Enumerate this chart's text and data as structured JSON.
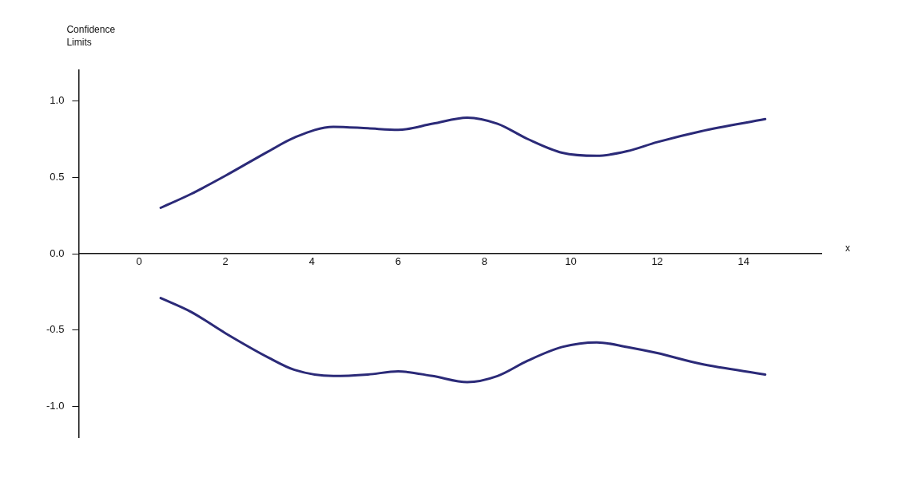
{
  "chart_data": {
    "type": "line",
    "xlabel": "x",
    "ylabel": "Confidence Limits",
    "xlim": [
      -1.4,
      15.8
    ],
    "ylim": [
      -1.2,
      1.2
    ],
    "xticks": [
      0,
      2,
      4,
      6,
      8,
      10,
      12,
      14
    ],
    "yticks": [
      {
        "value": -1,
        "label": "-1.0"
      },
      {
        "value": -0.5,
        "label": "-0.5"
      },
      {
        "value": 0,
        "label": "0.0"
      },
      {
        "value": 0.5,
        "label": "0.5"
      },
      {
        "value": 1,
        "label": "1.0"
      }
    ],
    "marker": "none",
    "line_style": "solid",
    "series": [
      {
        "color": "#2b2a78",
        "x": [
          0.5,
          1.2,
          2,
          3,
          3.6,
          4.5,
          5.3,
          6,
          6.8,
          7.6,
          8.3,
          9,
          9.8,
          10.6,
          11.3,
          12,
          13,
          14.5
        ],
        "values": [
          0.3,
          0.39,
          0.51,
          0.67,
          0.76,
          0.83,
          0.82,
          0.81,
          0.85,
          0.89,
          0.85,
          0.75,
          0.66,
          0.64,
          0.67,
          0.73,
          0.8,
          0.88
        ]
      },
      {
        "color": "#2b2a78",
        "x": [
          0.5,
          1.2,
          2,
          3,
          3.6,
          4.5,
          5.3,
          6,
          6.8,
          7.6,
          8.3,
          9,
          9.8,
          10.6,
          11.3,
          12,
          13,
          14.5
        ],
        "values": [
          -0.29,
          -0.38,
          -0.52,
          -0.68,
          -0.76,
          -0.8,
          -0.79,
          -0.77,
          -0.8,
          -0.84,
          -0.8,
          -0.7,
          -0.61,
          -0.58,
          -0.61,
          -0.65,
          -0.72,
          -0.79
        ]
      }
    ]
  }
}
